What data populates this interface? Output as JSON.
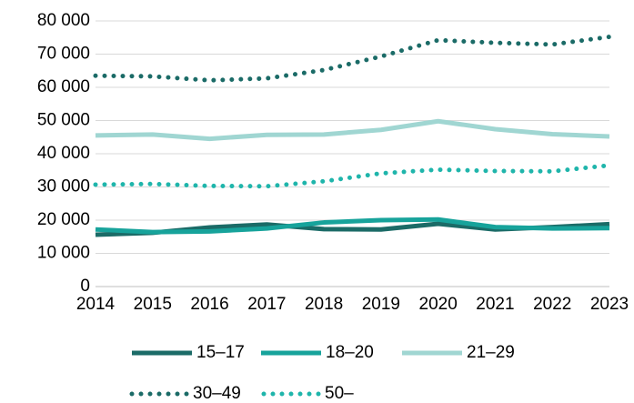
{
  "chart_data": {
    "type": "line",
    "x": [
      2014,
      2015,
      2016,
      2017,
      2018,
      2019,
      2020,
      2021,
      2022,
      2023
    ],
    "xlim": [
      2014,
      2023
    ],
    "xticks": [
      2014,
      2015,
      2016,
      2017,
      2018,
      2019,
      2020,
      2021,
      2022,
      2023
    ],
    "ylim": [
      0,
      80000
    ],
    "yticks": [
      0,
      {
        "value": 10000,
        "label": "10 000"
      },
      {
        "value": 20000,
        "label": "20 000"
      },
      {
        "value": 30000,
        "label": "30 000"
      },
      {
        "value": 40000,
        "label": "40 000"
      },
      {
        "value": 50000,
        "label": "50 000"
      },
      {
        "value": 60000,
        "label": "60 000"
      },
      {
        "value": 70000,
        "label": "70 000"
      },
      {
        "value": 80000,
        "label": "80 000"
      }
    ],
    "grid": true,
    "legend": "bottom",
    "series": [
      {
        "name": "15–17",
        "color": "#1b6b67",
        "linestyle": "solid",
        "values": [
          15600,
          16200,
          17800,
          18700,
          17300,
          17200,
          18900,
          17200,
          17900,
          18800
        ]
      },
      {
        "name": "18–20",
        "color": "#17a39b",
        "linestyle": "solid",
        "values": [
          17200,
          16400,
          16600,
          17500,
          19300,
          20000,
          20200,
          17900,
          17500,
          17600
        ]
      },
      {
        "name": "21–29",
        "color": "#a0d6d2",
        "linestyle": "solid",
        "values": [
          45500,
          45800,
          44500,
          45700,
          45800,
          47200,
          49800,
          47400,
          45900,
          45200
        ]
      },
      {
        "name": "30–49",
        "color": "#1b6b67",
        "linestyle": "dotted",
        "values": [
          63500,
          63300,
          62100,
          62700,
          65200,
          69300,
          74200,
          73400,
          72900,
          75200
        ]
      },
      {
        "name": "50–",
        "color": "#1fb5ab",
        "linestyle": "dotted",
        "values": [
          30700,
          30900,
          30300,
          30200,
          31700,
          34100,
          35200,
          34800,
          34700,
          36500
        ]
      }
    ]
  }
}
